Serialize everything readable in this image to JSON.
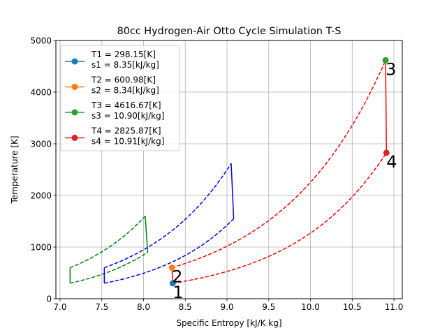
{
  "chart_data": {
    "type": "line",
    "title": "80cc Hydrogen-Air Otto Cycle Simulation T-S",
    "xlabel": "Specific Entropy [kJ/K kg]",
    "ylabel": "Temperature [K]",
    "xlim": [
      6.95,
      11.1
    ],
    "ylim": [
      0,
      5000
    ],
    "xticks": [
      "7.0",
      "7.5",
      "8.0",
      "8.5",
      "9.0",
      "9.5",
      "10.0",
      "10.5",
      "11.0"
    ],
    "yticks": [
      "0",
      "1000",
      "2000",
      "3000",
      "4000",
      "5000"
    ],
    "grid": true,
    "legend_position": "top-left",
    "legend": [
      {
        "line1": "T1 = 298.15[K]",
        "line2": "s1 = 8.35[kJ/kg]",
        "color": "#1f77b4"
      },
      {
        "line1": "T2 = 600.98[K]",
        "line2": "s2 = 8.34[kJ/kg]",
        "color": "#ff7f0e"
      },
      {
        "line1": "T3 = 4616.67[K]",
        "line2": "s3 = 10.90[kJ/kg]",
        "color": "#2ca02c"
      },
      {
        "line1": "T4 = 2825.87[K]",
        "line2": "s4 = 10.91[kJ/kg]",
        "color": "#d62728"
      }
    ],
    "state_points": [
      {
        "label": "1",
        "s": 8.35,
        "T": 298.15,
        "color": "#1f77b4"
      },
      {
        "label": "2",
        "s": 8.34,
        "T": 600.98,
        "color": "#ff7f0e"
      },
      {
        "label": "3",
        "s": 10.9,
        "T": 4616.67,
        "color": "#2ca02c"
      },
      {
        "label": "4",
        "s": 10.91,
        "T": 2825.87,
        "color": "#d62728"
      }
    ],
    "cycles": [
      {
        "color": "#008000",
        "corners": {
          "s1": 7.12,
          "T1": 300,
          "s2": 7.12,
          "T2": 600,
          "s3": 8.02,
          "T3": 1600,
          "s4": 8.05,
          "T4": 900
        }
      },
      {
        "color": "#0000ff",
        "corners": {
          "s1": 7.53,
          "T1": 300,
          "s2": 7.53,
          "T2": 600,
          "s3": 9.05,
          "T3": 2620,
          "s4": 9.08,
          "T4": 1550
        }
      },
      {
        "color": "#ff0000",
        "corners": {
          "s1": 8.35,
          "T1": 298.15,
          "s2": 8.34,
          "T2": 600.98,
          "s3": 10.9,
          "T3": 4616.67,
          "s4": 10.91,
          "T4": 2825.87
        }
      }
    ]
  }
}
